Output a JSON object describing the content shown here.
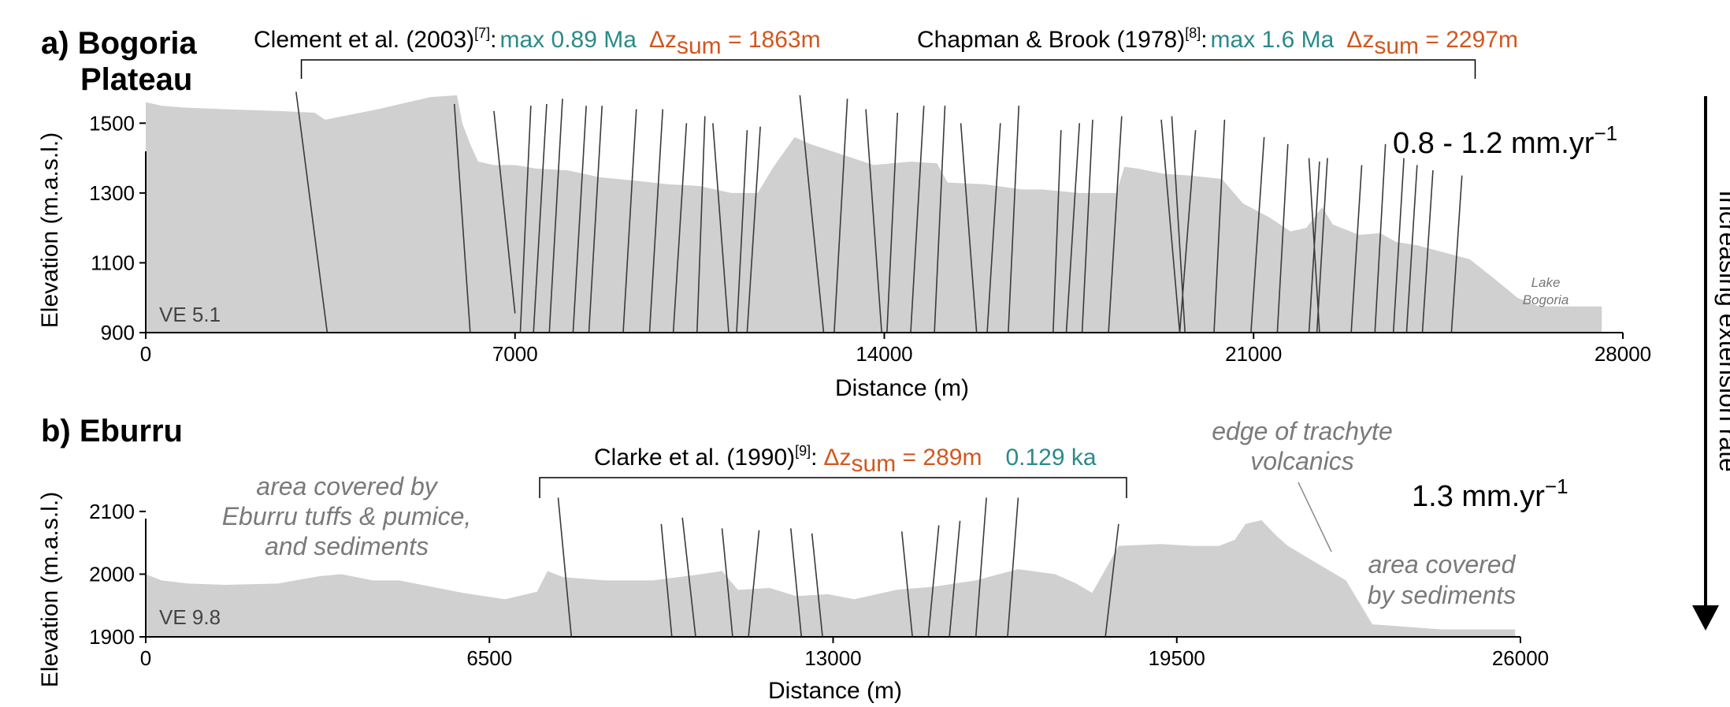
{
  "colors": {
    "profile_fill": "#d0d0d0",
    "fault_line": "#3a3a3a",
    "age_text": "#2a8a8a",
    "dz_text": "#d2571f",
    "axis": "#000000",
    "annotation_grey": "#7a7a7a",
    "arrow": "#000000"
  },
  "side_arrow": {
    "label": "Increasing extension rate"
  },
  "chart_data": [
    {
      "type": "area",
      "panel_label": "a) Bogoria",
      "panel_label_line2": "Plateau",
      "xlabel": "Distance (m)",
      "ylabel": "Elevation (m.a.s.l.)",
      "xlim": [
        0,
        28000
      ],
      "ylim": [
        900,
        1600
      ],
      "x_ticks": [
        "0",
        "7000",
        "14000",
        "21000",
        "28000"
      ],
      "y_ticks": [
        "900",
        "1100",
        "1300",
        "1500"
      ],
      "ve_label": "VE 5.1",
      "rate_label": "0.8 - 1.2 mm.yr",
      "rate_sup": "−1",
      "place_label_line1": "Lake",
      "place_label_line2": "Bogoria",
      "bracket_range": [
        2950,
        25200
      ],
      "refs": [
        {
          "author": "Clement et al. (2003)",
          "sup": "[7]",
          "colon": ":",
          "age": "max 0.89 Ma",
          "dz": "Δz",
          "dz_sub": "sum",
          "dz_value": " = 1863m"
        },
        {
          "author": "Chapman & Brook (1978)",
          "sup": "[8]",
          "colon": ":",
          "age": "max 1.6 Ma",
          "dz": "Δz",
          "dz_sub": "sum",
          "dz_value": " = 2297m"
        }
      ],
      "x": [
        0,
        300,
        700,
        1500,
        2500,
        3200,
        3400,
        4400,
        5400,
        5900,
        6000,
        6150,
        6300,
        6600,
        7000,
        7400,
        8000,
        8600,
        9300,
        9900,
        10500,
        11100,
        11600,
        11900,
        12300,
        12600,
        13100,
        13800,
        14500,
        15000,
        15200,
        15900,
        16600,
        17000,
        17700,
        18000,
        18400,
        18550,
        18800,
        19300,
        19800,
        20400,
        20800,
        21300,
        21700,
        22000,
        22300,
        22500,
        23000,
        23400,
        23700,
        24100,
        24600,
        25100,
        25600,
        26000,
        26400,
        27600
      ],
      "y": [
        1560,
        1550,
        1545,
        1540,
        1535,
        1530,
        1510,
        1540,
        1575,
        1580,
        1500,
        1440,
        1390,
        1380,
        1380,
        1370,
        1365,
        1345,
        1335,
        1325,
        1320,
        1300,
        1300,
        1375,
        1460,
        1440,
        1415,
        1380,
        1390,
        1385,
        1330,
        1325,
        1310,
        1310,
        1300,
        1300,
        1300,
        1375,
        1370,
        1355,
        1350,
        1340,
        1270,
        1230,
        1190,
        1200,
        1260,
        1210,
        1180,
        1185,
        1160,
        1150,
        1130,
        1110,
        1050,
        1000,
        975,
        975
      ],
      "faults": [
        {
          "x_top": 2850,
          "y_top": 1590,
          "x_bot": 3440,
          "y_bot": 900
        },
        {
          "x_top": 5850,
          "y_top": 1555,
          "x_bot": 6150,
          "y_bot": 900
        },
        {
          "x_top": 6600,
          "y_top": 1535,
          "x_bot": 7000,
          "y_bot": 955
        },
        {
          "x_top": 7300,
          "y_top": 1550,
          "x_bot": 7100,
          "y_bot": 900
        },
        {
          "x_top": 7600,
          "y_top": 1555,
          "x_bot": 7350,
          "y_bot": 900
        },
        {
          "x_top": 7900,
          "y_top": 1570,
          "x_bot": 7650,
          "y_bot": 900
        },
        {
          "x_top": 8350,
          "y_top": 1550,
          "x_bot": 8100,
          "y_bot": 900
        },
        {
          "x_top": 8650,
          "y_top": 1550,
          "x_bot": 8400,
          "y_bot": 900
        },
        {
          "x_top": 9300,
          "y_top": 1540,
          "x_bot": 9050,
          "y_bot": 900
        },
        {
          "x_top": 9800,
          "y_top": 1540,
          "x_bot": 9550,
          "y_bot": 900
        },
        {
          "x_top": 10250,
          "y_top": 1500,
          "x_bot": 10000,
          "y_bot": 900
        },
        {
          "x_top": 10600,
          "y_top": 1520,
          "x_bot": 10450,
          "y_bot": 900
        },
        {
          "x_top": 10750,
          "y_top": 1500,
          "x_bot": 11050,
          "y_bot": 900
        },
        {
          "x_top": 11400,
          "y_top": 1480,
          "x_bot": 11200,
          "y_bot": 900
        },
        {
          "x_top": 11650,
          "y_top": 1490,
          "x_bot": 11400,
          "y_bot": 900
        },
        {
          "x_top": 12400,
          "y_top": 1580,
          "x_bot": 12850,
          "y_bot": 900
        },
        {
          "x_top": 13300,
          "y_top": 1570,
          "x_bot": 13050,
          "y_bot": 900
        },
        {
          "x_top": 13650,
          "y_top": 1540,
          "x_bot": 13950,
          "y_bot": 900
        },
        {
          "x_top": 14250,
          "y_top": 1530,
          "x_bot": 14050,
          "y_bot": 900
        },
        {
          "x_top": 14750,
          "y_top": 1550,
          "x_bot": 14500,
          "y_bot": 900
        },
        {
          "x_top": 15150,
          "y_top": 1550,
          "x_bot": 14950,
          "y_bot": 900
        },
        {
          "x_top": 15450,
          "y_top": 1500,
          "x_bot": 15750,
          "y_bot": 900
        },
        {
          "x_top": 16200,
          "y_top": 1500,
          "x_bot": 15950,
          "y_bot": 900
        },
        {
          "x_top": 16550,
          "y_top": 1550,
          "x_bot": 16350,
          "y_bot": 900
        },
        {
          "x_top": 17350,
          "y_top": 1480,
          "x_bot": 17200,
          "y_bot": 900
        },
        {
          "x_top": 17700,
          "y_top": 1500,
          "x_bot": 17450,
          "y_bot": 900
        },
        {
          "x_top": 17950,
          "y_top": 1510,
          "x_bot": 17750,
          "y_bot": 900
        },
        {
          "x_top": 18500,
          "y_top": 1520,
          "x_bot": 18250,
          "y_bot": 900
        },
        {
          "x_top": 19250,
          "y_top": 1510,
          "x_bot": 19600,
          "y_bot": 900
        },
        {
          "x_top": 19450,
          "y_top": 1520,
          "x_bot": 19700,
          "y_bot": 900
        },
        {
          "x_top": 19900,
          "y_top": 1480,
          "x_bot": 19600,
          "y_bot": 900
        },
        {
          "x_top": 20450,
          "y_top": 1510,
          "x_bot": 20250,
          "y_bot": 900
        },
        {
          "x_top": 21200,
          "y_top": 1460,
          "x_bot": 20950,
          "y_bot": 900
        },
        {
          "x_top": 21650,
          "y_top": 1440,
          "x_bot": 21450,
          "y_bot": 900
        },
        {
          "x_top": 22050,
          "y_top": 1400,
          "x_bot": 22250,
          "y_bot": 900
        },
        {
          "x_top": 22250,
          "y_top": 1390,
          "x_bot": 22050,
          "y_bot": 900
        },
        {
          "x_top": 22400,
          "y_top": 1400,
          "x_bot": 22200,
          "y_bot": 900
        },
        {
          "x_top": 23050,
          "y_top": 1380,
          "x_bot": 22850,
          "y_bot": 900
        },
        {
          "x_top": 23500,
          "y_top": 1440,
          "x_bot": 23300,
          "y_bot": 900
        },
        {
          "x_top": 23850,
          "y_top": 1400,
          "x_bot": 23650,
          "y_bot": 900
        },
        {
          "x_top": 24100,
          "y_top": 1380,
          "x_bot": 23900,
          "y_bot": 900
        },
        {
          "x_top": 24400,
          "y_top": 1365,
          "x_bot": 24200,
          "y_bot": 900
        },
        {
          "x_top": 24950,
          "y_top": 1350,
          "x_bot": 24750,
          "y_bot": 900
        }
      ]
    },
    {
      "type": "area",
      "panel_label": "b) Eburru",
      "xlabel": "Distance (m)",
      "ylabel": "Elevation (m.a.s.l.)",
      "xlim": [
        0,
        26000
      ],
      "ylim": [
        1900,
        2125
      ],
      "x_ticks": [
        "0",
        "6500",
        "13000",
        "19500",
        "26000"
      ],
      "y_ticks": [
        "1900",
        "2000",
        "2100"
      ],
      "ve_label": "VE 9.8",
      "rate_label": "1.3 mm.yr",
      "rate_sup": "−1",
      "bracket_range": [
        7450,
        18550
      ],
      "refs": [
        {
          "author": "Clarke et al. (1990)",
          "sup": "[9]",
          "colon": ":",
          "dz": "Δz",
          "dz_sub": "sum",
          "dz_value": " = 289m",
          "age": "0.129 ka"
        }
      ],
      "annotations": {
        "left_area": [
          "area covered by",
          "Eburru tuffs & pumice,",
          "and sediments"
        ],
        "edge": [
          "edge of trachyte",
          "volcanics"
        ],
        "right_area": [
          "area covered",
          "by sediments"
        ]
      },
      "x": [
        0,
        300,
        800,
        1500,
        2500,
        3300,
        3700,
        4300,
        4800,
        5400,
        6000,
        6800,
        7400,
        7600,
        7900,
        8700,
        9600,
        10500,
        10900,
        11200,
        11800,
        12300,
        12900,
        13400,
        14200,
        14900,
        15700,
        16500,
        17200,
        17600,
        17900,
        18400,
        19200,
        19800,
        20300,
        20600,
        20800,
        21100,
        21400,
        21600,
        21900,
        22200,
        22700,
        23200,
        24500,
        25900
      ],
      "y": [
        2000,
        1990,
        1985,
        1983,
        1985,
        1997,
        2000,
        1990,
        1990,
        1980,
        1970,
        1960,
        1972,
        2005,
        1995,
        1990,
        1990,
        2000,
        2005,
        1975,
        1978,
        1965,
        1968,
        1960,
        1975,
        1980,
        1990,
        2008,
        2000,
        1985,
        1970,
        2045,
        2048,
        2045,
        2045,
        2055,
        2080,
        2086,
        2060,
        2045,
        2030,
        2015,
        1990,
        1920,
        1912,
        1912
      ],
      "faults": [
        {
          "x_top": 7800,
          "y_top": 2122,
          "x_bot": 8050,
          "y_bot": 1900
        },
        {
          "x_top": 9750,
          "y_top": 2080,
          "x_bot": 9950,
          "y_bot": 1900
        },
        {
          "x_top": 10150,
          "y_top": 2090,
          "x_bot": 10400,
          "y_bot": 1900
        },
        {
          "x_top": 10900,
          "y_top": 2073,
          "x_bot": 11100,
          "y_bot": 1900
        },
        {
          "x_top": 11600,
          "y_top": 2070,
          "x_bot": 11400,
          "y_bot": 1900
        },
        {
          "x_top": 12200,
          "y_top": 2073,
          "x_bot": 12400,
          "y_bot": 1900
        },
        {
          "x_top": 12600,
          "y_top": 2065,
          "x_bot": 12800,
          "y_bot": 1900
        },
        {
          "x_top": 14300,
          "y_top": 2068,
          "x_bot": 14500,
          "y_bot": 1900
        },
        {
          "x_top": 15000,
          "y_top": 2078,
          "x_bot": 14800,
          "y_bot": 1900
        },
        {
          "x_top": 15400,
          "y_top": 2085,
          "x_bot": 15200,
          "y_bot": 1900
        },
        {
          "x_top": 15900,
          "y_top": 2122,
          "x_bot": 15700,
          "y_bot": 1900
        },
        {
          "x_top": 16500,
          "y_top": 2122,
          "x_bot": 16300,
          "y_bot": 1900
        },
        {
          "x_top": 18400,
          "y_top": 2080,
          "x_bot": 18150,
          "y_bot": 1900
        }
      ]
    }
  ]
}
